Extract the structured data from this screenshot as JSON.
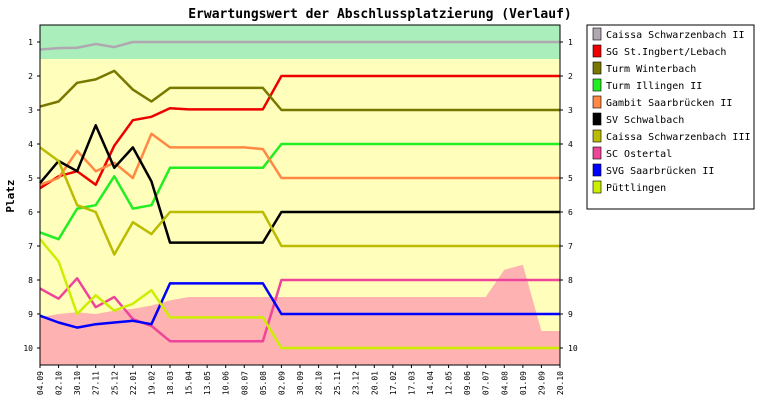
{
  "chart_data": {
    "type": "line",
    "title": "Erwartungswert der Abschlussplatzierung (Verlauf)",
    "ylabel": "Platz",
    "xlabel": "",
    "ylim": [
      10.5,
      0.5
    ],
    "y_ticks": [
      1,
      2,
      3,
      4,
      5,
      6,
      7,
      8,
      9,
      10
    ],
    "grid": false,
    "legend_position": "right",
    "x": [
      "04.09",
      "02.10",
      "30.10",
      "27.11",
      "25.12",
      "22.01",
      "19.02",
      "18.03",
      "15.04",
      "13.05",
      "10.06",
      "08.07",
      "05.08",
      "02.09",
      "30.09",
      "28.10",
      "25.11",
      "23.12",
      "20.01",
      "17.02",
      "17.03",
      "14.04",
      "12.05",
      "09.06",
      "07.07",
      "04.08",
      "01.09",
      "29.09",
      "20.10"
    ],
    "background_bands": [
      {
        "from": 0.5,
        "to": 1.5,
        "color": "#aaeebb"
      },
      {
        "from": 1.5,
        "to": 10.5,
        "color": "#ffffbb"
      }
    ],
    "pink_area": {
      "color": "#ffb2b2",
      "values": [
        9.1,
        9.0,
        8.95,
        9.0,
        8.9,
        8.85,
        8.75,
        8.6,
        8.5,
        8.5,
        8.5,
        8.5,
        8.5,
        8.5,
        8.5,
        8.5,
        8.5,
        8.5,
        8.5,
        8.5,
        8.5,
        8.5,
        8.5,
        8.5,
        8.5,
        7.7,
        7.55,
        9.5,
        9.5
      ]
    },
    "series": [
      {
        "name": "Caissa Schwarzenbach II",
        "color": "#b0a8b0",
        "values": [
          1.22,
          1.18,
          1.17,
          1.06,
          1.15,
          1.0,
          1,
          1,
          1,
          1,
          1,
          1,
          1,
          1,
          1,
          1,
          1,
          1,
          1,
          1,
          1,
          1,
          1,
          1,
          1,
          1,
          1,
          1,
          1
        ]
      },
      {
        "name": "SG St.Ingbert/Lebach",
        "color": "#ee0000",
        "values": [
          5.3,
          4.95,
          4.8,
          5.2,
          4.05,
          3.3,
          3.2,
          2.95,
          2.98,
          2.98,
          2.98,
          2.98,
          2.98,
          2.0,
          2,
          2,
          2,
          2,
          2,
          2,
          2,
          2,
          2,
          2,
          2,
          2,
          2,
          2,
          2
        ]
      },
      {
        "name": "Turm Winterbach",
        "color": "#787800",
        "values": [
          2.9,
          2.75,
          2.2,
          2.1,
          1.85,
          2.4,
          2.75,
          2.35,
          2.35,
          2.35,
          2.35,
          2.35,
          2.35,
          3.0,
          3,
          3,
          3,
          3,
          3,
          3,
          3,
          3,
          3,
          3,
          3,
          3,
          3,
          3,
          3
        ]
      },
      {
        "name": "Turm Illingen II",
        "color": "#22ee22",
        "values": [
          6.6,
          6.8,
          5.9,
          5.8,
          4.95,
          5.9,
          5.8,
          4.7,
          4.7,
          4.7,
          4.7,
          4.7,
          4.7,
          4.0,
          4,
          4,
          4,
          4,
          4,
          4,
          4,
          4,
          4,
          4,
          4,
          4,
          4,
          4,
          4
        ]
      },
      {
        "name": "Gambit Saarbrücken II",
        "color": "#ff8844",
        "values": [
          5.2,
          5.0,
          4.2,
          4.8,
          4.55,
          5.0,
          3.7,
          4.1,
          4.1,
          4.1,
          4.1,
          4.1,
          4.15,
          5.0,
          5,
          5,
          5,
          5,
          5,
          5,
          5,
          5,
          5,
          5,
          5,
          5,
          5,
          5,
          5
        ]
      },
      {
        "name": "SV Schwalbach",
        "color": "#000000",
        "values": [
          5.15,
          4.5,
          4.8,
          3.45,
          4.7,
          4.1,
          5.1,
          6.9,
          6.9,
          6.9,
          6.9,
          6.9,
          6.9,
          6.0,
          6,
          6,
          6,
          6,
          6,
          6,
          6,
          6,
          6,
          6,
          6,
          6,
          6,
          6,
          6
        ]
      },
      {
        "name": "Caissa Schwarzenbach III",
        "color": "#bbbb00",
        "values": [
          4.1,
          4.5,
          5.8,
          6.0,
          7.25,
          6.3,
          6.65,
          6.0,
          6.0,
          6.0,
          6.0,
          6.0,
          6.0,
          7.0,
          7,
          7,
          7,
          7,
          7,
          7,
          7,
          7,
          7,
          7,
          7,
          7,
          7,
          7,
          7
        ]
      },
      {
        "name": "SC Ostertal",
        "color": "#ee4499",
        "values": [
          8.25,
          8.55,
          7.95,
          8.8,
          8.5,
          9.15,
          9.35,
          9.8,
          9.8,
          9.8,
          9.8,
          9.8,
          9.8,
          8.0,
          8,
          8,
          8,
          8,
          8,
          8,
          8,
          8,
          8,
          8,
          8,
          8,
          8,
          8,
          8
        ]
      },
      {
        "name": "SVG Saarbrücken II",
        "color": "#0000ff",
        "values": [
          9.05,
          9.25,
          9.4,
          9.3,
          9.25,
          9.2,
          9.3,
          8.1,
          8.1,
          8.1,
          8.1,
          8.1,
          8.1,
          9.0,
          9,
          9,
          9,
          9,
          9,
          9,
          9,
          9,
          9,
          9,
          9,
          9,
          9,
          9,
          9
        ]
      },
      {
        "name": "Püttlingen",
        "color": "#ccee00",
        "values": [
          6.8,
          7.45,
          9.0,
          8.45,
          8.9,
          8.7,
          8.3,
          9.1,
          9.1,
          9.1,
          9.1,
          9.1,
          9.1,
          10.0,
          10,
          10,
          10,
          10,
          10,
          10,
          10,
          10,
          10,
          10,
          10,
          10,
          10,
          10,
          10
        ]
      }
    ]
  }
}
